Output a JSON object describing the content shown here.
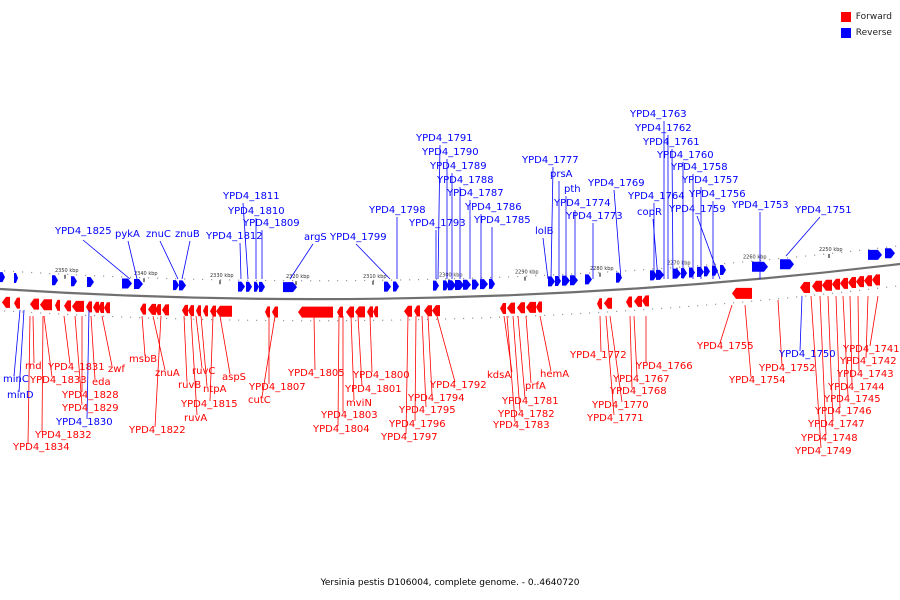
{
  "colors": {
    "forward": "#ff0000",
    "reverse": "#0000ff"
  },
  "legend": {
    "forward_label": "Forward",
    "reverse_label": "Reverse"
  },
  "caption": "Yersinia pestis D106004, complete genome. - 0..4640720",
  "ticks": [
    "2350 kbp",
    "2340 kbp",
    "2330 kbp",
    "2320 kbp",
    "2310 kbp",
    "2300 kbp",
    "2290 kbp",
    "2280 kbp",
    "2270 kbp",
    "2260 kbp",
    "2250 kbp"
  ],
  "reverse_labels": [
    "YPD4_1825",
    "pykA",
    "znuC",
    "znuB",
    "YPD4_1811",
    "YPD4_1810",
    "YPD4_1809",
    "YPD4_1812",
    "argS",
    "YPD4_1799",
    "YPD4_1798",
    "YPD4_1791",
    "YPD4_1790",
    "YPD4_1789",
    "YPD4_1788",
    "YPD4_1787",
    "YPD4_1786",
    "YPD4_1785",
    "YPD4_1793",
    "YPD4_1777",
    "prsA",
    "pth",
    "YPD4_1774",
    "YPD4_1773",
    "lolB",
    "YPD4_1769",
    "YPD4_1764",
    "copR",
    "YPD4_1763",
    "YPD4_1762",
    "YPD4_1761",
    "YPD4_1760",
    "YPD4_1758",
    "YPD4_1757",
    "YPD4_1756",
    "YPD4_1759",
    "YPD4_1753",
    "YPD4_1751",
    "minC",
    "minD",
    "YPD4_1830",
    "YPD4_1750"
  ],
  "forward_labels": [
    "rnd",
    "YPD4_1831",
    "YPD4_1833",
    "eda",
    "zwf",
    "YPD4_1828",
    "YPD4_1829",
    "YPD4_1832",
    "YPD4_1834",
    "msbB",
    "znuA",
    "YPD4_1822",
    "ruvB",
    "ruvC",
    "ntpA",
    "ruvA",
    "YPD4_1815",
    "aspS",
    "YPD4_1807",
    "cutC",
    "YPD4_1805",
    "YPD4_1800",
    "YPD4_1801",
    "mviN",
    "YPD4_1803",
    "YPD4_1804",
    "YPD4_1792",
    "YPD4_1794",
    "YPD4_1795",
    "YPD4_1796",
    "YPD4_1797",
    "kdsA",
    "prfA",
    "hemA",
    "YPD4_1781",
    "YPD4_1782",
    "YPD4_1783",
    "YPD4_1772",
    "YPD4_1767",
    "YPD4_1766",
    "YPD4_1768",
    "YPD4_1770",
    "YPD4_1771",
    "YPD4_1755",
    "YPD4_1754",
    "YPD4_1752",
    "YPD4_1741",
    "YPD4_1742",
    "YPD4_1743",
    "YPD4_1744",
    "YPD4_1745",
    "YPD4_1746",
    "YPD4_1747",
    "YPD4_1748",
    "YPD4_1749"
  ]
}
